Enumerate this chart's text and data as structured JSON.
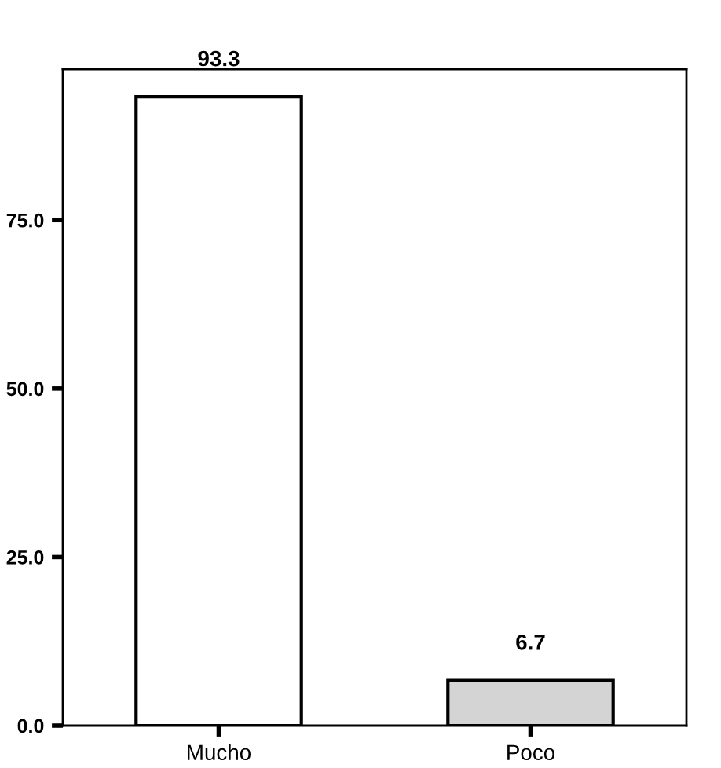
{
  "chart_data": {
    "type": "bar",
    "categories": [
      "Mucho",
      "Poco"
    ],
    "values": [
      93.3,
      6.7
    ],
    "colors": [
      "#ffffff",
      "#d4d4d4"
    ],
    "ylim": [
      0,
      97.4
    ],
    "yticks": [
      {
        "value": 0,
        "label": "0.0"
      },
      {
        "value": 25,
        "label": "25.0"
      },
      {
        "value": 50,
        "label": "50.0"
      },
      {
        "value": 75,
        "label": "75.0"
      }
    ],
    "data_labels": true,
    "grid": false
  }
}
